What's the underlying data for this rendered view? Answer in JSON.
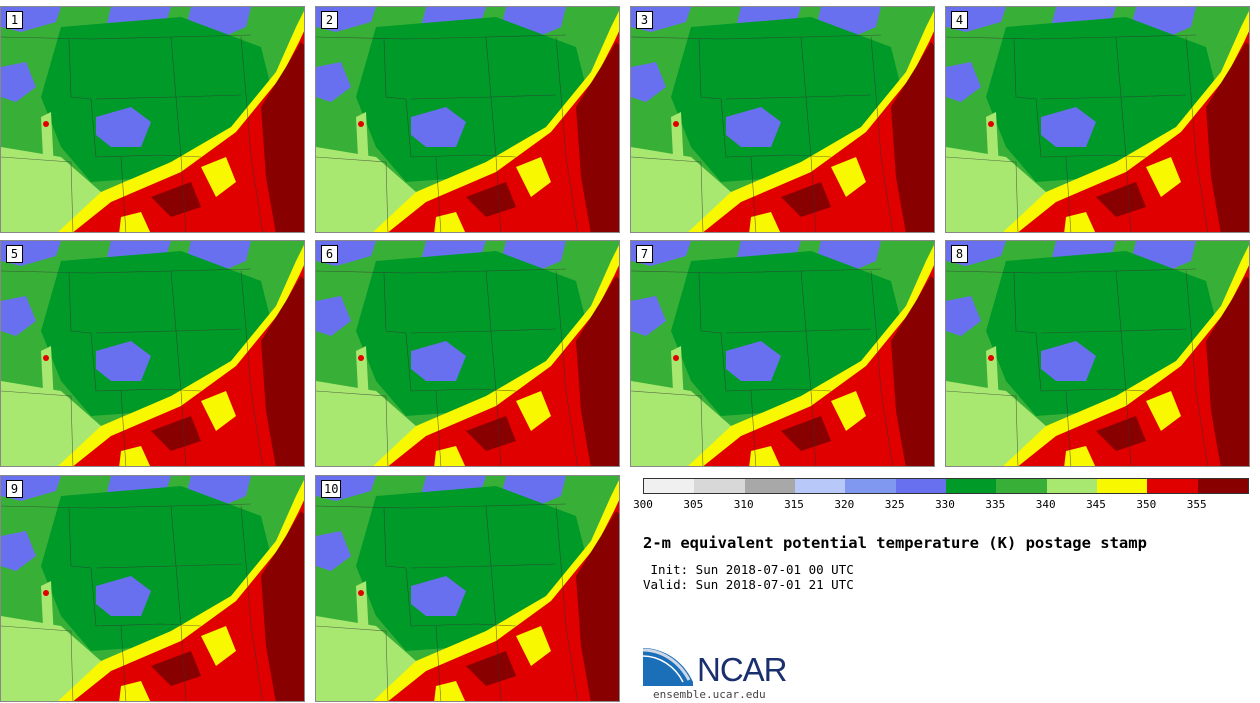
{
  "panels": [
    {
      "number": "1"
    },
    {
      "number": "2"
    },
    {
      "number": "3"
    },
    {
      "number": "4"
    },
    {
      "number": "5"
    },
    {
      "number": "6"
    },
    {
      "number": "7"
    },
    {
      "number": "8"
    },
    {
      "number": "9"
    },
    {
      "number": "10"
    }
  ],
  "colorbar": {
    "colors": [
      "#f0f0f0",
      "#d8d8d8",
      "#a8a8a8",
      "#b8c8f8",
      "#8098f0",
      "#6870f0",
      "#009a28",
      "#38b038",
      "#a8e870",
      "#f8f800",
      "#e00000",
      "#880000"
    ],
    "tick_labels": [
      "300",
      "305",
      "310",
      "315",
      "320",
      "325",
      "330",
      "335",
      "340",
      "345",
      "350",
      "355"
    ]
  },
  "title": "2-m equivalent potential temperature (K) postage stamp",
  "init_line": " Init: Sun 2018-07-01 00 UTC",
  "valid_line": "Valid: Sun 2018-07-01 21 UTC",
  "logo": {
    "text": "NCAR",
    "website": "ensemble.ucar.edu"
  }
}
